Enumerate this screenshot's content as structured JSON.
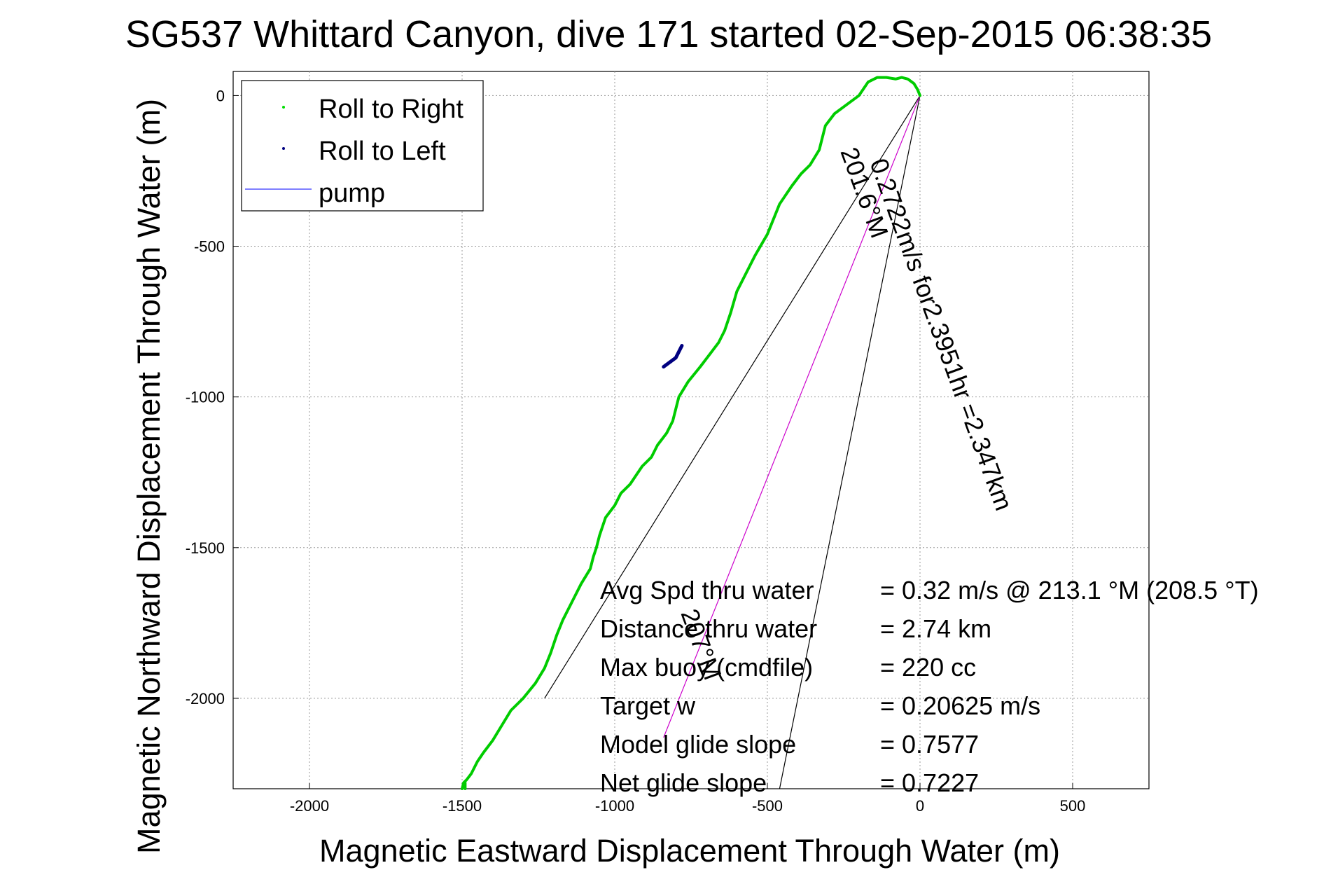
{
  "chart_data": {
    "type": "line",
    "title": "SG537 Whittard Canyon, dive 171 started 02-Sep-2015 06:38:35",
    "xlabel": "Magnetic Eastward Displacement Through Water (m)",
    "ylabel": "Magnetic Northward Displacement Through Water (m)",
    "xlim": [
      -2250,
      750
    ],
    "ylim": [
      -2300,
      80
    ],
    "xticks": [
      -2000,
      -1500,
      -1000,
      -500,
      0,
      500
    ],
    "yticks": [
      0,
      -500,
      -1000,
      -1500,
      -2000
    ],
    "grid": true,
    "legend": {
      "placement": "top-left",
      "entries": [
        {
          "label": "Roll to Right",
          "color": "#00dd00",
          "marker": "dot"
        },
        {
          "label": "Roll to Left",
          "color": "#000080",
          "marker": "dot"
        },
        {
          "label": "pump",
          "color": "#3333ff",
          "marker": "line"
        }
      ]
    },
    "series": [
      {
        "name": "Roll to Right",
        "color": "#00cc00",
        "x": [
          0,
          -8,
          -20,
          -40,
          -60,
          -80,
          -110,
          -140,
          -170,
          -200,
          -240,
          -280,
          -310,
          -320,
          -330,
          -360,
          -390,
          -420,
          -460,
          -500,
          -540,
          -570,
          -600,
          -620,
          -640,
          -660,
          -690,
          -720,
          -760,
          -790,
          -800,
          -810,
          -830,
          -860,
          -880,
          -910,
          -930,
          -950,
          -980,
          -1000,
          -1030,
          -1050,
          -1060,
          -1070,
          -1080,
          -1110,
          -1140,
          -1170,
          -1190,
          -1210,
          -1230,
          -1260,
          -1300,
          -1340,
          -1370,
          -1400,
          -1430,
          -1450,
          -1470,
          -1485,
          -1495,
          -1500,
          -1495,
          -1490,
          -1490
        ],
        "y": [
          0,
          20,
          40,
          55,
          60,
          55,
          60,
          60,
          45,
          0,
          -30,
          -60,
          -100,
          -140,
          -180,
          -230,
          -260,
          -300,
          -360,
          -460,
          -530,
          -590,
          -650,
          -720,
          -780,
          -820,
          -860,
          -900,
          -950,
          -1000,
          -1040,
          -1080,
          -1120,
          -1160,
          -1200,
          -1230,
          -1260,
          -1290,
          -1320,
          -1360,
          -1400,
          -1460,
          -1500,
          -1530,
          -1570,
          -1620,
          -1680,
          -1740,
          -1790,
          -1850,
          -1900,
          -1950,
          -2000,
          -2040,
          -2090,
          -2140,
          -2180,
          -2210,
          -2250,
          -2270,
          -2280,
          -2300,
          -2290,
          -2280,
          -2300
        ]
      },
      {
        "name": "Roll to Left",
        "color": "#000080",
        "x": [
          -840,
          -800,
          -780
        ],
        "y": [
          -900,
          -870,
          -830
        ]
      }
    ],
    "annotations": [
      {
        "text": "0.2722m/s for2.3951hr =2.347km",
        "angle_deg": 70
      },
      {
        "text": "201.6°M",
        "angle_deg": 70
      },
      {
        "text": "207°M",
        "angle_deg": 70
      }
    ],
    "stats": [
      {
        "label": "Avg Spd thru water",
        "value": "=  0.32 m/s @ 213.1 °M (208.5 °T)"
      },
      {
        "label": "Distance thru water",
        "value": "=  2.74 km"
      },
      {
        "label": "Max buoy (cmdfile)",
        "value": "= 220 cc"
      },
      {
        "label": "Target w",
        "value": "= 0.20625 m/s"
      },
      {
        "label": "Model glide slope",
        "value": "= 0.7577"
      },
      {
        "label": "Net glide slope",
        "value": "= 0.7227"
      }
    ],
    "lines": [
      {
        "name": "bracket-line-1",
        "x": [
          0,
          -1230
        ],
        "y": [
          0,
          -2000
        ]
      },
      {
        "name": "bracket-line-2",
        "x": [
          0,
          -460
        ],
        "y": [
          0,
          -2300
        ]
      },
      {
        "name": "current-vector",
        "x": [
          0,
          -840
        ],
        "y": [
          0,
          -2130
        ],
        "color": "#cc00cc"
      }
    ]
  }
}
